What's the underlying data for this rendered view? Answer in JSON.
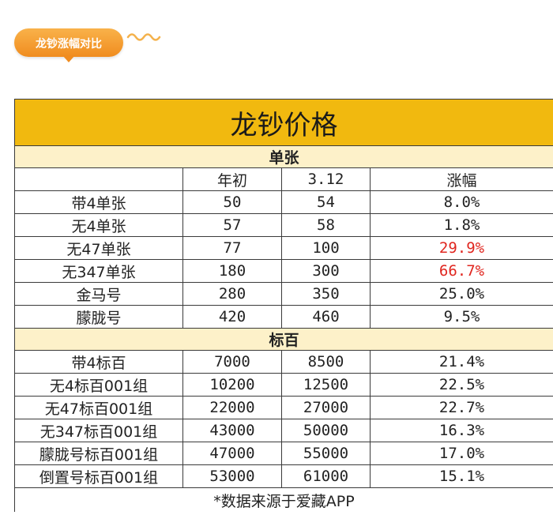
{
  "badge": {
    "label": "龙钞涨幅对比"
  },
  "table": {
    "title": "龙钞价格",
    "header": [
      "",
      "年初",
      "3.12",
      "涨幅"
    ],
    "sections": [
      {
        "label": "单张",
        "rows": [
          {
            "name": "带4单张",
            "start": "50",
            "now": "54",
            "change": "8.0%",
            "highlight": false
          },
          {
            "name": "无4单张",
            "start": "57",
            "now": "58",
            "change": "1.8%",
            "highlight": false
          },
          {
            "name": "无47单张",
            "start": "77",
            "now": "100",
            "change": "29.9%",
            "highlight": true
          },
          {
            "name": "无347单张",
            "start": "180",
            "now": "300",
            "change": "66.7%",
            "highlight": true
          },
          {
            "name": "金马号",
            "start": "280",
            "now": "350",
            "change": "25.0%",
            "highlight": false
          },
          {
            "name": "朦胧号",
            "start": "420",
            "now": "460",
            "change": "9.5%",
            "highlight": false
          }
        ]
      },
      {
        "label": "标百",
        "rows": [
          {
            "name": "带4标百",
            "start": "7000",
            "now": "8500",
            "change": "21.4%",
            "highlight": false
          },
          {
            "name": "无4标百001组",
            "start": "10200",
            "now": "12500",
            "change": "22.5%",
            "highlight": false
          },
          {
            "name": "无47标百001组",
            "start": "22000",
            "now": "27000",
            "change": "22.7%",
            "highlight": false
          },
          {
            "name": "无347标百001组",
            "start": "43000",
            "now": "50000",
            "change": "16.3%",
            "highlight": false
          },
          {
            "name": "朦胧号标百001组",
            "start": "47000",
            "now": "55000",
            "change": "17.0%",
            "highlight": false
          },
          {
            "name": "倒置号标百001组",
            "start": "53000",
            "now": "61000",
            "change": "15.1%",
            "highlight": false
          }
        ]
      }
    ],
    "footnote": "*数据来源于爱藏APP",
    "colors": {
      "title_bg": "#f1b90f",
      "section_bg": "#fdf1c9",
      "highlight": "#e0261f",
      "badge": "#f08c1f"
    }
  }
}
